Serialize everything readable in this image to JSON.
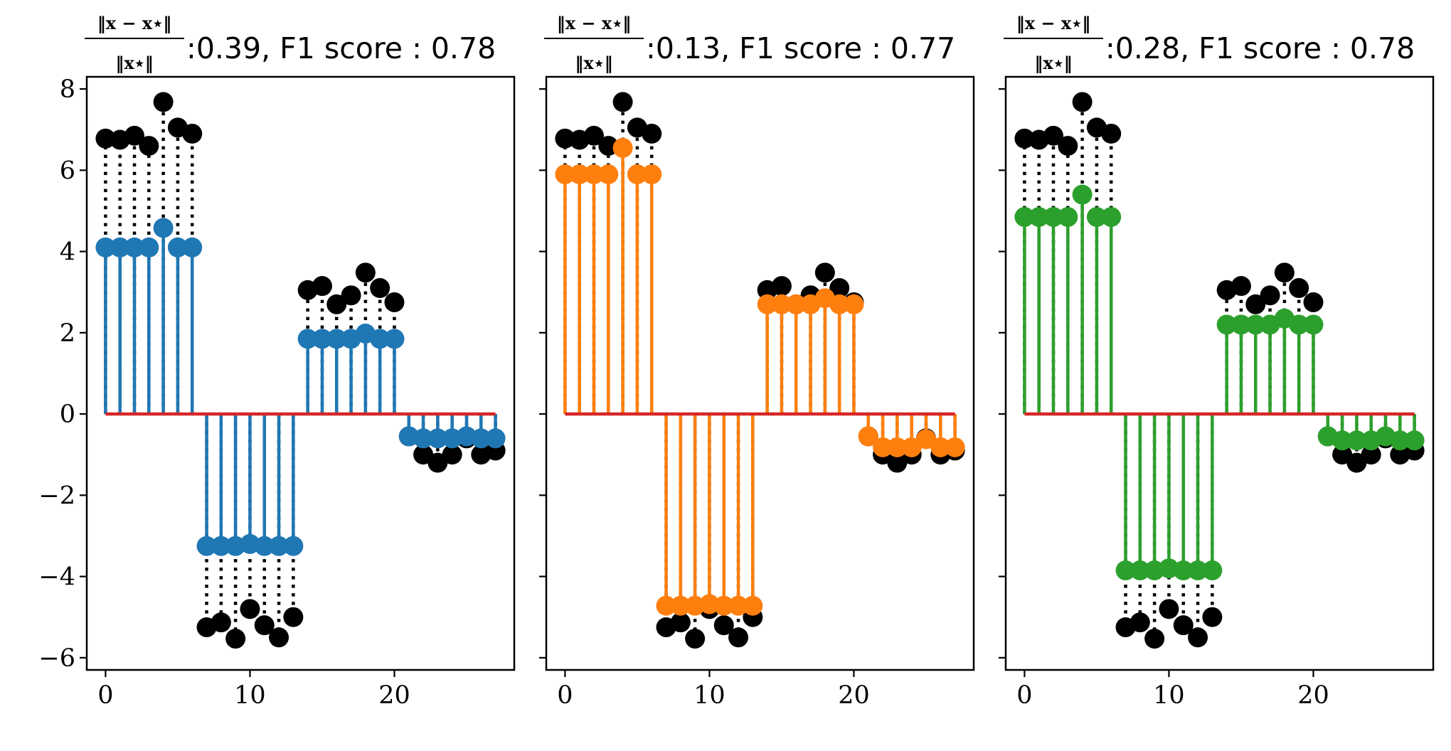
{
  "chart_data": [
    {
      "type": "stem",
      "title": {
        "fraction": {
          "numerator": "‖x − x⋆‖",
          "denominator": "‖x⋆‖"
        },
        "value": ":0.39, F1 score : 0.78"
      },
      "xticks": [
        0,
        10,
        20
      ],
      "yticks": [
        8,
        6,
        4,
        2,
        0,
        -2,
        -4,
        -6
      ],
      "xlim": [
        -1.3,
        28.3
      ],
      "ylim": [
        -6.3,
        8.3
      ],
      "baseline": {
        "y": 0,
        "x": [
          0,
          27
        ],
        "color": "#d62728"
      },
      "series": [
        {
          "role": "ground-truth",
          "color": "#000000",
          "style": "dotted",
          "x": [
            0,
            1,
            2,
            3,
            4,
            5,
            6,
            7,
            8,
            9,
            10,
            11,
            12,
            13,
            14,
            15,
            16,
            17,
            18,
            19,
            20,
            21,
            22,
            23,
            24,
            25,
            26,
            27
          ],
          "y": [
            6.78,
            6.75,
            6.85,
            6.6,
            7.68,
            7.05,
            6.9,
            -5.25,
            -5.13,
            -5.53,
            -4.8,
            -5.2,
            -5.5,
            -5.0,
            3.05,
            3.15,
            2.7,
            2.92,
            3.48,
            3.1,
            2.75,
            -0.55,
            -1.0,
            -1.2,
            -1.0,
            -0.6,
            -1.0,
            -0.9
          ]
        },
        {
          "role": "estimate",
          "color": "#1f77b4",
          "style": "solid",
          "x": [
            0,
            1,
            2,
            3,
            4,
            5,
            6,
            7,
            8,
            9,
            10,
            11,
            12,
            13,
            14,
            15,
            16,
            17,
            18,
            19,
            20,
            21,
            22,
            23,
            24,
            25,
            26,
            27
          ],
          "y": [
            4.1,
            4.1,
            4.1,
            4.1,
            4.58,
            4.1,
            4.1,
            -3.25,
            -3.25,
            -3.25,
            -3.2,
            -3.25,
            -3.25,
            -3.25,
            1.85,
            1.85,
            1.85,
            1.85,
            1.98,
            1.85,
            1.85,
            -0.55,
            -0.6,
            -0.6,
            -0.6,
            -0.55,
            -0.6,
            -0.6
          ]
        }
      ]
    },
    {
      "type": "stem",
      "title": {
        "fraction": {
          "numerator": "‖x − x⋆‖",
          "denominator": "‖x⋆‖"
        },
        "value": ":0.13, F1 score : 0.77"
      },
      "xticks": [
        0,
        10,
        20
      ],
      "yticks": [
        8,
        6,
        4,
        2,
        0,
        -2,
        -4,
        -6
      ],
      "xlim": [
        -1.3,
        28.3
      ],
      "ylim": [
        -6.3,
        8.3
      ],
      "baseline": {
        "y": 0,
        "x": [
          0,
          27
        ],
        "color": "#d62728"
      },
      "series": [
        {
          "role": "ground-truth",
          "color": "#000000",
          "style": "dotted",
          "x": [
            0,
            1,
            2,
            3,
            4,
            5,
            6,
            7,
            8,
            9,
            10,
            11,
            12,
            13,
            14,
            15,
            16,
            17,
            18,
            19,
            20,
            21,
            22,
            23,
            24,
            25,
            26,
            27
          ],
          "y": [
            6.78,
            6.75,
            6.85,
            6.6,
            7.68,
            7.05,
            6.9,
            -5.25,
            -5.13,
            -5.53,
            -4.8,
            -5.2,
            -5.5,
            -5.0,
            3.05,
            3.15,
            2.7,
            2.92,
            3.48,
            3.1,
            2.75,
            -0.55,
            -1.0,
            -1.2,
            -1.0,
            -0.6,
            -1.0,
            -0.9
          ]
        },
        {
          "role": "estimate",
          "color": "#ff7f0e",
          "style": "solid",
          "x": [
            0,
            1,
            2,
            3,
            4,
            5,
            6,
            7,
            8,
            9,
            10,
            11,
            12,
            13,
            14,
            15,
            16,
            17,
            18,
            19,
            20,
            21,
            22,
            23,
            24,
            25,
            26,
            27
          ],
          "y": [
            5.9,
            5.9,
            5.9,
            5.9,
            6.55,
            5.9,
            5.9,
            -4.72,
            -4.72,
            -4.72,
            -4.68,
            -4.72,
            -4.72,
            -4.72,
            2.7,
            2.7,
            2.7,
            2.7,
            2.85,
            2.7,
            2.7,
            -0.55,
            -0.82,
            -0.82,
            -0.82,
            -0.62,
            -0.82,
            -0.82
          ]
        }
      ]
    },
    {
      "type": "stem",
      "title": {
        "fraction": {
          "numerator": "‖x − x⋆‖",
          "denominator": "‖x⋆‖"
        },
        "value": ":0.28, F1 score : 0.78"
      },
      "xticks": [
        0,
        10,
        20
      ],
      "yticks": [
        8,
        6,
        4,
        2,
        0,
        -2,
        -4,
        -6
      ],
      "xlim": [
        -1.3,
        28.3
      ],
      "ylim": [
        -6.3,
        8.3
      ],
      "baseline": {
        "y": 0,
        "x": [
          0,
          27
        ],
        "color": "#d62728"
      },
      "series": [
        {
          "role": "ground-truth",
          "color": "#000000",
          "style": "dotted",
          "x": [
            0,
            1,
            2,
            3,
            4,
            5,
            6,
            7,
            8,
            9,
            10,
            11,
            12,
            13,
            14,
            15,
            16,
            17,
            18,
            19,
            20,
            21,
            22,
            23,
            24,
            25,
            26,
            27
          ],
          "y": [
            6.78,
            6.75,
            6.85,
            6.6,
            7.68,
            7.05,
            6.9,
            -5.25,
            -5.13,
            -5.53,
            -4.8,
            -5.2,
            -5.5,
            -5.0,
            3.05,
            3.15,
            2.7,
            2.92,
            3.48,
            3.1,
            2.75,
            -0.55,
            -1.0,
            -1.2,
            -1.0,
            -0.6,
            -1.0,
            -0.9
          ]
        },
        {
          "role": "estimate",
          "color": "#2ca02c",
          "style": "solid",
          "x": [
            0,
            1,
            2,
            3,
            4,
            5,
            6,
            7,
            8,
            9,
            10,
            11,
            12,
            13,
            14,
            15,
            16,
            17,
            18,
            19,
            20,
            21,
            22,
            23,
            24,
            25,
            26,
            27
          ],
          "y": [
            4.85,
            4.85,
            4.85,
            4.85,
            5.4,
            4.85,
            4.85,
            -3.85,
            -3.85,
            -3.85,
            -3.8,
            -3.85,
            -3.85,
            -3.85,
            2.2,
            2.2,
            2.2,
            2.2,
            2.35,
            2.2,
            2.2,
            -0.55,
            -0.65,
            -0.65,
            -0.65,
            -0.55,
            -0.65,
            -0.65
          ]
        }
      ]
    }
  ]
}
